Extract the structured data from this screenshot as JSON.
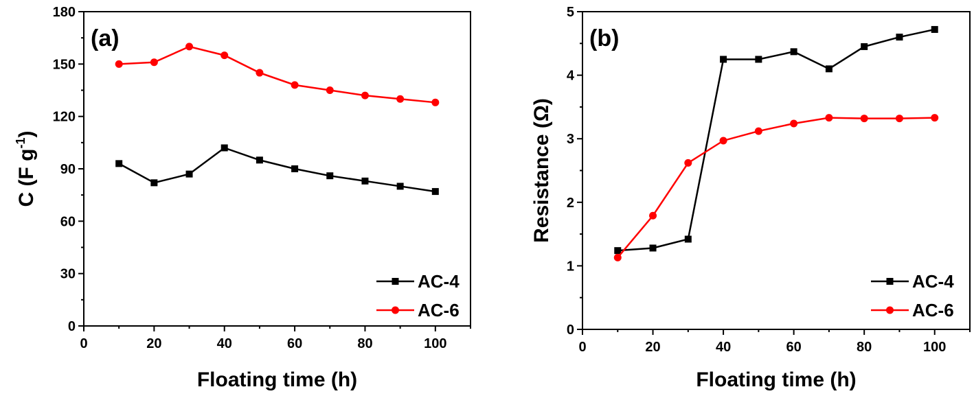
{
  "chart_data": [
    {
      "type": "line",
      "panel_label": "(a)",
      "xlabel": "Floating time (h)",
      "ylabel": "C (F g",
      "ylabel_sup": "-1",
      "ylabel_close": ")",
      "xlim": [
        0,
        110
      ],
      "ylim": [
        0,
        180
      ],
      "xticks": [
        0,
        20,
        40,
        60,
        80,
        100
      ],
      "yticks": [
        0,
        30,
        60,
        90,
        120,
        150,
        180
      ],
      "grid": false,
      "legend_position": "bottom-right",
      "x": [
        10,
        20,
        30,
        40,
        50,
        60,
        70,
        80,
        90,
        100
      ],
      "series": [
        {
          "name": "AC-4",
          "color": "#000000",
          "marker": "square",
          "values": [
            93,
            82,
            87,
            102,
            95,
            90,
            86,
            83,
            80,
            77
          ]
        },
        {
          "name": "AC-6",
          "color": "#ff0000",
          "marker": "circle",
          "values": [
            150,
            151,
            160,
            155,
            145,
            138,
            135,
            132,
            130,
            128
          ]
        }
      ]
    },
    {
      "type": "line",
      "panel_label": "(b)",
      "xlabel": "Floating time (h)",
      "ylabel": "Resistance (Ω)",
      "xlim": [
        0,
        110
      ],
      "ylim": [
        0,
        5
      ],
      "xticks": [
        0,
        20,
        40,
        60,
        80,
        100
      ],
      "yticks": [
        0,
        1,
        2,
        3,
        4,
        5
      ],
      "grid": false,
      "legend_position": "bottom-right",
      "x": [
        10,
        20,
        30,
        40,
        50,
        60,
        70,
        80,
        90,
        100
      ],
      "series": [
        {
          "name": "AC-4",
          "color": "#000000",
          "marker": "square",
          "values": [
            1.24,
            1.28,
            1.42,
            4.25,
            4.25,
            4.37,
            4.1,
            4.45,
            4.6,
            4.72
          ]
        },
        {
          "name": "AC-6",
          "color": "#ff0000",
          "marker": "circle",
          "values": [
            1.13,
            1.79,
            2.62,
            2.97,
            3.12,
            3.24,
            3.33,
            3.32,
            3.32,
            3.33
          ]
        }
      ]
    }
  ]
}
